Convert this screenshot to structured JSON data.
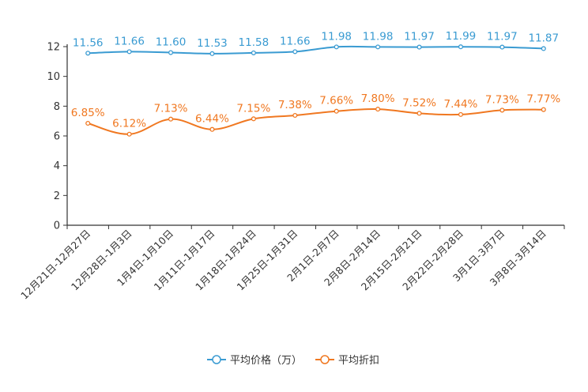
{
  "chart_data": {
    "type": "line",
    "categories": [
      "12月21日-12月27日",
      "12月28日-1月3日",
      "1月4日-1月10日",
      "1月11日-1月17日",
      "1月18日-1月24日",
      "1月25日-1月31日",
      "2月1日-2月7日",
      "2月8日-2月14日",
      "2月15日-2月21日",
      "2月22日-2月28日",
      "3月1日-3月7日",
      "3月8日-3月14日"
    ],
    "ylim": [
      0,
      12
    ],
    "yticks": [
      0,
      2,
      4,
      6,
      8,
      10,
      12
    ],
    "series": [
      {
        "name": "平均价格（万）",
        "color": "#3a9bd2",
        "values": [
          11.56,
          11.66,
          11.6,
          11.53,
          11.58,
          11.66,
          11.98,
          11.98,
          11.97,
          11.99,
          11.97,
          11.87
        ],
        "labels": [
          "11.56",
          "11.66",
          "11.60",
          "11.53",
          "11.58",
          "11.66",
          "11.98",
          "11.98",
          "11.97",
          "11.99",
          "11.97",
          "11.87"
        ]
      },
      {
        "name": "平均折扣",
        "color": "#f07821",
        "values": [
          6.85,
          6.12,
          7.13,
          6.44,
          7.15,
          7.38,
          7.66,
          7.8,
          7.52,
          7.44,
          7.73,
          7.77
        ],
        "labels": [
          "6.85%",
          "6.12%",
          "7.13%",
          "6.44%",
          "7.15%",
          "7.38%",
          "7.66%",
          "7.80%",
          "7.52%",
          "7.44%",
          "7.73%",
          "7.77%"
        ]
      }
    ]
  }
}
